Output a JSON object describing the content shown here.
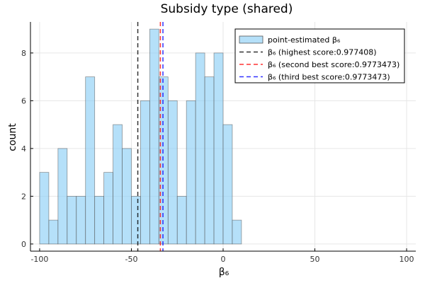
{
  "chart_data": {
    "type": "bar",
    "title": "Subsidy type (shared)",
    "xlabel": "β₆",
    "ylabel": "count",
    "xlim": [
      -105,
      105
    ],
    "ylim": [
      -0.3,
      9.3
    ],
    "xticks": [
      -100,
      -50,
      0,
      50,
      100
    ],
    "xtick_labels": [
      "-100",
      "-50",
      "0",
      "50",
      "100"
    ],
    "yticks": [
      0,
      2,
      4,
      6,
      8
    ],
    "ytick_labels": [
      "0",
      "2",
      "4",
      "6",
      "8"
    ],
    "grid": true,
    "legend_position": "top-right",
    "bin_width": 5,
    "bins": [
      {
        "x0": -100,
        "x1": -95,
        "count": 3
      },
      {
        "x0": -95,
        "x1": -90,
        "count": 1
      },
      {
        "x0": -90,
        "x1": -85,
        "count": 4
      },
      {
        "x0": -85,
        "x1": -80,
        "count": 2
      },
      {
        "x0": -80,
        "x1": -75,
        "count": 2
      },
      {
        "x0": -75,
        "x1": -70,
        "count": 7
      },
      {
        "x0": -70,
        "x1": -65,
        "count": 2
      },
      {
        "x0": -65,
        "x1": -60,
        "count": 3
      },
      {
        "x0": -60,
        "x1": -55,
        "count": 5
      },
      {
        "x0": -55,
        "x1": -50,
        "count": 4
      },
      {
        "x0": -50,
        "x1": -45,
        "count": 2
      },
      {
        "x0": -45,
        "x1": -40,
        "count": 6
      },
      {
        "x0": -40,
        "x1": -35,
        "count": 9
      },
      {
        "x0": -35,
        "x1": -30,
        "count": 7
      },
      {
        "x0": -30,
        "x1": -25,
        "count": 6
      },
      {
        "x0": -25,
        "x1": -20,
        "count": 2
      },
      {
        "x0": -20,
        "x1": -15,
        "count": 6
      },
      {
        "x0": -15,
        "x1": -10,
        "count": 8
      },
      {
        "x0": -10,
        "x1": -5,
        "count": 7
      },
      {
        "x0": -5,
        "x1": 0,
        "count": 8
      },
      {
        "x0": 0,
        "x1": 5,
        "count": 5
      },
      {
        "x0": 5,
        "x1": 10,
        "count": 1
      }
    ],
    "histogram": {
      "name": "point-estimated β₆",
      "fill": "#8ecff6",
      "stroke": "#555555"
    },
    "vlines": [
      {
        "name": "β₆ (highest score:0.977408)",
        "x": -46.5,
        "color": "#000000"
      },
      {
        "name": "β₆ (second best score:0.9773473)",
        "x": -34.2,
        "color": "#ff0000"
      },
      {
        "name": "β₆ (third best score:0.9773473)",
        "x": -32.8,
        "color": "#0000ff"
      }
    ]
  }
}
